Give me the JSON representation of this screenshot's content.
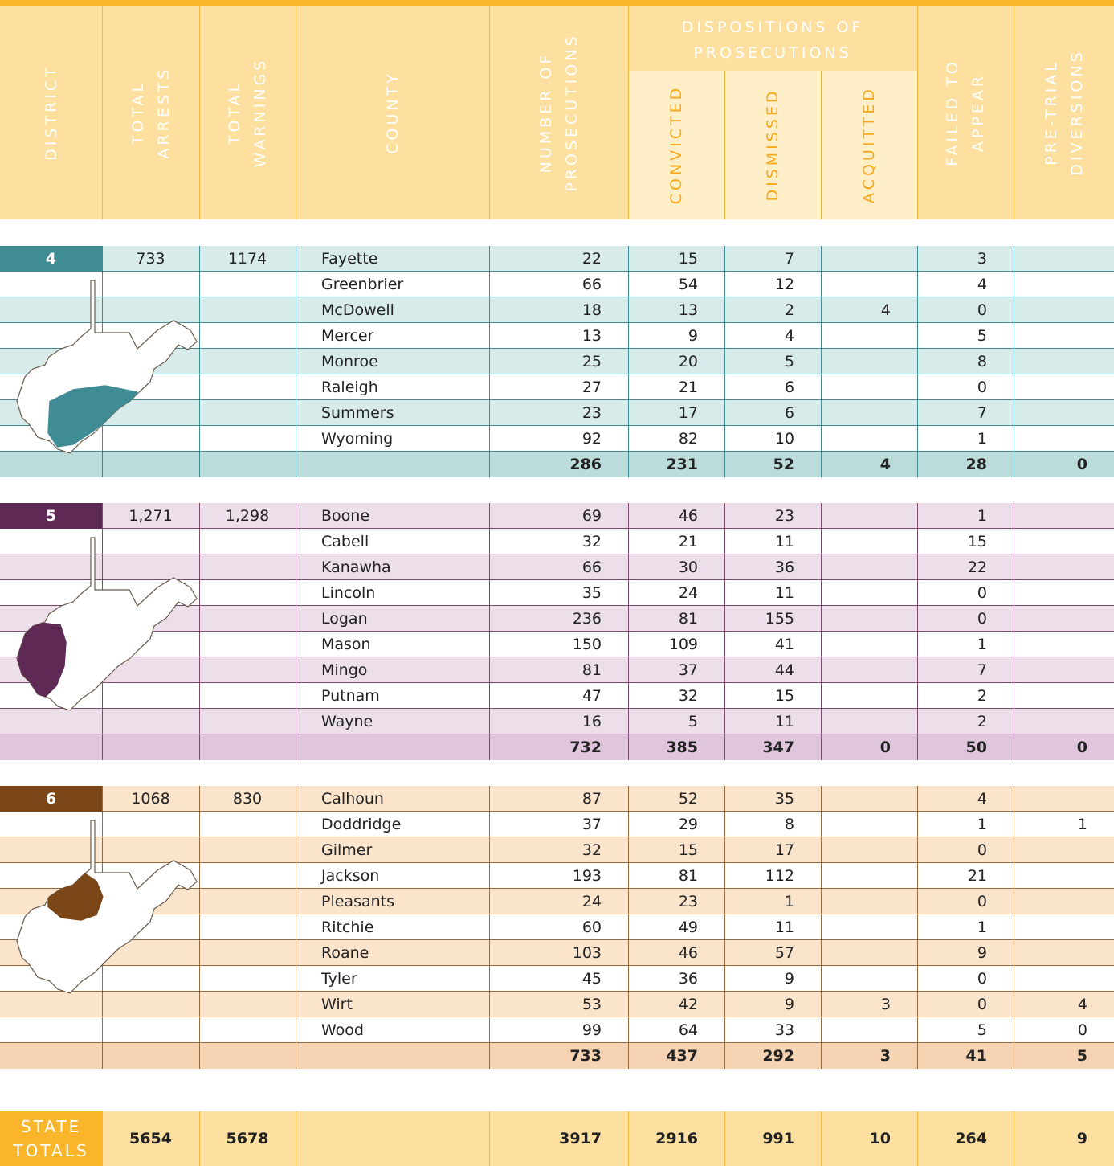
{
  "header": {
    "columns": [
      [
        "DISTRICT"
      ],
      [
        "TOTAL",
        "ARRESTS"
      ],
      [
        "TOTAL",
        "WARNINGS"
      ],
      [
        "COUNTY"
      ],
      [
        "NUMBER OF",
        "PROSECUTIONS"
      ],
      [
        "FAILED TO",
        "APPEAR"
      ],
      [
        "PRE-TRIAL",
        "DIVERSIONS"
      ]
    ],
    "group": {
      "title": [
        "DISPOSITIONS OF",
        "PROSECUTIONS"
      ],
      "columns": [
        "CONVICTED",
        "DISMISSED",
        "ACQUITTED"
      ]
    }
  },
  "districts": [
    {
      "district": "4",
      "total_arrests": 733,
      "total_warnings": 1174,
      "counties": [
        {
          "name": "Fayette",
          "values": [
            22,
            15,
            7,
            null,
            3,
            null
          ]
        },
        {
          "name": "Greenbrier",
          "values": [
            66,
            54,
            12,
            null,
            4,
            null
          ]
        },
        {
          "name": "McDowell",
          "values": [
            18,
            13,
            2,
            4,
            0,
            null
          ]
        },
        {
          "name": "Mercer",
          "values": [
            13,
            9,
            4,
            null,
            5,
            null
          ]
        },
        {
          "name": "Monroe",
          "values": [
            25,
            20,
            5,
            null,
            8,
            null
          ]
        },
        {
          "name": "Raleigh",
          "values": [
            27,
            21,
            6,
            null,
            0,
            null
          ]
        },
        {
          "name": "Summers",
          "values": [
            23,
            17,
            6,
            null,
            7,
            null
          ]
        },
        {
          "name": "Wyoming",
          "values": [
            92,
            82,
            10,
            null,
            1,
            null
          ]
        }
      ],
      "totals": [
        286,
        231,
        52,
        4,
        28,
        0
      ]
    },
    {
      "district": "5",
      "total_arrests": "1,271",
      "total_warnings": "1,298",
      "counties": [
        {
          "name": "Boone",
          "values": [
            69,
            46,
            23,
            null,
            1,
            null
          ]
        },
        {
          "name": "Cabell",
          "values": [
            32,
            21,
            11,
            null,
            15,
            null
          ]
        },
        {
          "name": "Kanawha",
          "values": [
            66,
            30,
            36,
            null,
            22,
            null
          ]
        },
        {
          "name": "Lincoln",
          "values": [
            35,
            24,
            11,
            null,
            0,
            null
          ]
        },
        {
          "name": "Logan",
          "values": [
            236,
            81,
            155,
            null,
            0,
            null
          ]
        },
        {
          "name": "Mason",
          "values": [
            150,
            109,
            41,
            null,
            1,
            null
          ]
        },
        {
          "name": "Mingo",
          "values": [
            81,
            37,
            44,
            null,
            7,
            null
          ]
        },
        {
          "name": "Putnam",
          "values": [
            47,
            32,
            15,
            null,
            2,
            null
          ]
        },
        {
          "name": "Wayne",
          "values": [
            16,
            5,
            11,
            null,
            2,
            null
          ]
        }
      ],
      "totals": [
        732,
        385,
        347,
        0,
        50,
        0
      ]
    },
    {
      "district": "6",
      "total_arrests": 1068,
      "total_warnings": 830,
      "counties": [
        {
          "name": "Calhoun",
          "values": [
            87,
            52,
            35,
            null,
            4,
            null
          ]
        },
        {
          "name": "Doddridge",
          "values": [
            37,
            29,
            8,
            null,
            1,
            1
          ]
        },
        {
          "name": "Gilmer",
          "values": [
            32,
            15,
            17,
            null,
            0,
            null
          ]
        },
        {
          "name": "Jackson",
          "values": [
            193,
            81,
            112,
            null,
            21,
            null
          ]
        },
        {
          "name": "Pleasants",
          "values": [
            24,
            23,
            1,
            null,
            0,
            null
          ]
        },
        {
          "name": "Ritchie",
          "values": [
            60,
            49,
            11,
            null,
            1,
            null
          ]
        },
        {
          "name": "Roane",
          "values": [
            103,
            46,
            57,
            null,
            9,
            null
          ]
        },
        {
          "name": "Tyler",
          "values": [
            45,
            36,
            9,
            null,
            0,
            null
          ]
        },
        {
          "name": "Wirt",
          "values": [
            53,
            42,
            9,
            3,
            0,
            4
          ]
        },
        {
          "name": "Wood",
          "values": [
            99,
            64,
            33,
            null,
            5,
            0
          ]
        }
      ],
      "totals": [
        733,
        437,
        292,
        3,
        41,
        5
      ]
    }
  ],
  "state_totals": {
    "label": [
      "STATE",
      "TOTALS"
    ],
    "total_arrests": 5654,
    "total_warnings": 5678,
    "values": [
      3917,
      2916,
      991,
      10,
      264,
      9
    ]
  }
}
